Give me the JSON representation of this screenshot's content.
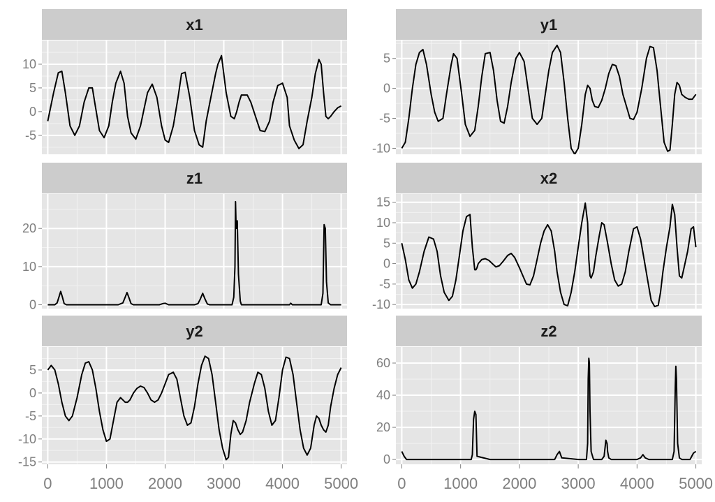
{
  "chart_data": {
    "type": "line",
    "layout": "facet-grid",
    "x_ticks": [
      0,
      1000,
      2000,
      3000,
      4000,
      5000
    ],
    "xlim": [
      -100,
      5100
    ],
    "grid": true,
    "panels": [
      {
        "title": "x1",
        "ylim": [
          -9,
          15
        ],
        "y_ticks": [
          -5,
          0,
          5,
          10
        ],
        "series": [
          {
            "x": [
              0,
              100,
              180,
              240,
              300,
              380,
              460,
              540,
              620,
              700,
              760,
              800,
              880,
              960,
              1040,
              1100,
              1160,
              1240,
              1300,
              1360,
              1420,
              1500,
              1580,
              1640,
              1700,
              1780,
              1860,
              1940,
              2000,
              2060,
              2140,
              2220,
              2280,
              2340,
              2420,
              2500,
              2580,
              2640,
              2700,
              2780,
              2860,
              2900,
              2960,
              3040,
              3120,
              3180,
              3220,
              3260,
              3300,
              3400,
              3460,
              3540,
              3620,
              3700,
              3780,
              3840,
              3920,
              4000,
              4080,
              4120,
              4200,
              4280,
              4350,
              4420,
              4500,
              4560,
              4620,
              4660,
              4700,
              4740,
              4780,
              4820,
              4880,
              4940,
              5000
            ],
            "y": [
              -2,
              4,
              8.2,
              8.5,
              4,
              -3,
              -5,
              -3,
              2,
              5,
              5,
              2,
              -4,
              -5.5,
              -3,
              2,
              6,
              8.5,
              6,
              -1,
              -4.5,
              -5.8,
              -3,
              0.5,
              4,
              5.8,
              3,
              -3,
              -6,
              -6.5,
              -3,
              3,
              8,
              8.3,
              3,
              -4,
              -7,
              -7.5,
              -2,
              3,
              8,
              10,
              11.8,
              4,
              -1,
              -1.5,
              0,
              2,
              3.5,
              3.5,
              2,
              -1,
              -4,
              -4.2,
              -2,
              2,
              5.5,
              6,
              3,
              -3,
              -6,
              -7.8,
              -7,
              -2,
              3,
              8,
              11,
              10,
              4,
              -1,
              -1.5,
              -1,
              0,
              0.8,
              1.2
            ]
          }
        ]
      },
      {
        "title": "y1",
        "ylim": [
          -11,
          8
        ],
        "y_ticks": [
          -10,
          -5,
          0,
          5
        ],
        "series": [
          {
            "x": [
              0,
              60,
              120,
              180,
              240,
              300,
              360,
              420,
              500,
              560,
              620,
              700,
              760,
              840,
              880,
              940,
              1020,
              1080,
              1160,
              1240,
              1300,
              1360,
              1420,
              1500,
              1560,
              1620,
              1680,
              1740,
              1800,
              1860,
              1940,
              2000,
              2080,
              2160,
              2220,
              2300,
              2380,
              2440,
              2500,
              2560,
              2640,
              2700,
              2760,
              2820,
              2880,
              2940,
              3000,
              3060,
              3120,
              3160,
              3200,
              3240,
              3280,
              3340,
              3400,
              3460,
              3520,
              3580,
              3640,
              3700,
              3760,
              3820,
              3880,
              3940,
              4000,
              4080,
              4160,
              4220,
              4280,
              4340,
              4400,
              4460,
              4520,
              4560,
              4600,
              4640,
              4680,
              4720,
              4760,
              4820,
              4880,
              4940,
              5000
            ],
            "y": [
              -10,
              -9,
              -5,
              0,
              4,
              6,
              6.5,
              4,
              -1,
              -4,
              -5.5,
              -5,
              -1,
              4,
              5.8,
              5,
              -1,
              -6,
              -8,
              -7,
              -3,
              2,
              5.8,
              6,
              3,
              -2,
              -5.5,
              -5.8,
              -3,
              1,
              5,
              6,
              4.5,
              -1,
              -5,
              -6,
              -5,
              -1,
              3,
              6,
              7.2,
              6,
              1,
              -5,
              -10,
              -11,
              -10,
              -6,
              -1,
              0.5,
              0,
              -2,
              -3,
              -3.2,
              -2,
              0,
              2.5,
              4,
              3.8,
              2,
              -1,
              -3,
              -5,
              -5.2,
              -4,
              0,
              5,
              7,
              6.8,
              3,
              -3,
              -9,
              -10.5,
              -10.3,
              -6,
              -1,
              1,
              0.5,
              -1,
              -1.5,
              -1.8,
              -1.8,
              -1
            ]
          }
        ]
      },
      {
        "title": "z1",
        "ylim": [
          -1,
          29
        ],
        "y_ticks": [
          0,
          10,
          20
        ],
        "series": [
          {
            "x": [
              0,
              120,
              160,
              190,
              220,
              250,
              280,
              320,
              380,
              1000,
              1200,
              1280,
              1320,
              1350,
              1380,
              1420,
              1460,
              1500,
              1900,
              1960,
              2000,
              2060,
              2500,
              2560,
              2600,
              2640,
              2680,
              2720,
              2760,
              3000,
              3140,
              3170,
              3190,
              3200,
              3210,
              3230,
              3250,
              3280,
              3300,
              4000,
              4120,
              4140,
              4170,
              4600,
              4660,
              4690,
              4710,
              4730,
              4750,
              4780,
              4820,
              5000
            ],
            "y": [
              0,
              0,
              0.5,
              2,
              3.5,
              2,
              0.3,
              0,
              0,
              0,
              0,
              0.5,
              2,
              3.2,
              2,
              0.3,
              0,
              0,
              0,
              0.3,
              0.4,
              0,
              0,
              0.3,
              1.5,
              3,
              1.5,
              0.2,
              0,
              0,
              0,
              2,
              10,
              27,
              20,
              22,
              8,
              1,
              0,
              0,
              0,
              0.4,
              0,
              0,
              0,
              3,
              21,
              20,
              6,
              0.5,
              0,
              0
            ]
          }
        ]
      },
      {
        "title": "x2",
        "ylim": [
          -11,
          17
        ],
        "y_ticks": [
          -10,
          -5,
          0,
          5,
          10,
          15
        ],
        "series": [
          {
            "x": [
              0,
              60,
              120,
              180,
              240,
              300,
              380,
              460,
              540,
              600,
              660,
              720,
              800,
              860,
              920,
              980,
              1040,
              1100,
              1160,
              1200,
              1240,
              1260,
              1280,
              1300,
              1360,
              1420,
              1480,
              1540,
              1600,
              1660,
              1720,
              1800,
              1860,
              1920,
              2000,
              2060,
              2120,
              2180,
              2240,
              2300,
              2360,
              2420,
              2480,
              2540,
              2600,
              2640,
              2700,
              2760,
              2820,
              2880,
              2940,
              3000,
              3060,
              3120,
              3160,
              3180,
              3200,
              3220,
              3260,
              3300,
              3360,
              3400,
              3440,
              3500,
              3560,
              3620,
              3680,
              3740,
              3800,
              3860,
              3940,
              4000,
              4060,
              4120,
              4180,
              4240,
              4300,
              4360,
              4400,
              4440,
              4500,
              4560,
              4600,
              4640,
              4680,
              4720,
              4760,
              4800,
              4860,
              4920,
              4960,
              5000
            ],
            "y": [
              5,
              1,
              -4,
              -6,
              -5,
              -2,
              3,
              6.5,
              6,
              3,
              -3,
              -7,
              -9,
              -8,
              -4,
              2,
              8,
              11.5,
              12,
              4,
              -1.5,
              -1.5,
              -1,
              0,
              1,
              1.2,
              0.8,
              0,
              -0.8,
              -0.5,
              0.5,
              2,
              2.5,
              1.5,
              -1,
              -3,
              -5,
              -5.2,
              -3,
              1,
              5,
              8,
              9.5,
              8,
              3,
              -2,
              -7,
              -10,
              -10.3,
              -7,
              -2,
              4,
              10,
              14.8,
              10,
              1,
              -3,
              -3.5,
              -2,
              2,
              7,
              10,
              9.5,
              5,
              0,
              -4,
              -5.5,
              -5,
              -2,
              3,
              8.5,
              9,
              6,
              1,
              -4,
              -9,
              -10.5,
              -10.2,
              -7,
              -2,
              4,
              9,
              14.5,
              12,
              4,
              -3,
              -3.5,
              -1,
              3,
              8.5,
              9,
              4
            ]
          }
        ]
      },
      {
        "title": "y2",
        "ylim": [
          -15.5,
          10
        ],
        "y_ticks": [
          -15,
          -10,
          -5,
          0,
          5
        ],
        "series": [
          {
            "x": [
              0,
              60,
              120,
              180,
              240,
              300,
              360,
              420,
              500,
              580,
              640,
              700,
              760,
              820,
              880,
              940,
              1000,
              1060,
              1120,
              1180,
              1240,
              1280,
              1320,
              1360,
              1400,
              1460,
              1520,
              1580,
              1640,
              1700,
              1760,
              1820,
              1880,
              1940,
              2000,
              2060,
              2140,
              2200,
              2260,
              2320,
              2380,
              2440,
              2500,
              2560,
              2620,
              2680,
              2740,
              2800,
              2860,
              2920,
              2980,
              3040,
              3080,
              3120,
              3160,
              3200,
              3240,
              3280,
              3320,
              3380,
              3440,
              3520,
              3580,
              3640,
              3700,
              3760,
              3820,
              3880,
              3940,
              4000,
              4060,
              4120,
              4180,
              4240,
              4300,
              4360,
              4420,
              4480,
              4540,
              4580,
              4620,
              4660,
              4700,
              4740,
              4780,
              4820,
              4880,
              4940,
              5000
            ],
            "y": [
              5,
              6,
              5,
              2,
              -2,
              -5,
              -6,
              -5,
              -1,
              4,
              6.5,
              6.8,
              5,
              1,
              -4,
              -8,
              -10.5,
              -10,
              -6,
              -2,
              -1,
              -1.5,
              -2,
              -2,
              -1.5,
              0,
              1,
              1.5,
              1.2,
              0,
              -1.5,
              -2,
              -1.5,
              0,
              2,
              4,
              4.5,
              3,
              -1,
              -5,
              -7,
              -6.5,
              -3,
              2,
              6,
              8,
              7.5,
              4,
              -2,
              -8,
              -12,
              -14.5,
              -14,
              -9,
              -6,
              -6.5,
              -8,
              -9,
              -8.5,
              -6,
              -2,
              2,
              4.5,
              4,
              1,
              -4,
              -7,
              -6,
              -1,
              5,
              7.8,
              7.5,
              4,
              -2,
              -8,
              -12,
              -13.5,
              -12,
              -7,
              -5,
              -5.5,
              -7,
              -8,
              -8.5,
              -7,
              -3,
              1,
              4,
              5.5
            ]
          }
        ]
      },
      {
        "title": "z2",
        "ylim": [
          -3,
          70
        ],
        "y_ticks": [
          0,
          20,
          40,
          60
        ],
        "series": [
          {
            "x": [
              0,
              40,
              80,
              1000,
              1180,
              1200,
              1220,
              1240,
              1260,
              1280,
              1500,
              2500,
              2600,
              2640,
              2680,
              2720,
              3000,
              3140,
              3160,
              3170,
              3180,
              3190,
              3200,
              3220,
              3260,
              3400,
              3440,
              3470,
              3490,
              3500,
              3520,
              3560,
              3600,
              4000,
              4060,
              4100,
              4140,
              4200,
              4500,
              4600,
              4630,
              4650,
              4660,
              4670,
              4690,
              4720,
              4760,
              4900,
              4960,
              5000
            ],
            "y": [
              5,
              2,
              0,
              0,
              0,
              3,
              25,
              30,
              28,
              2,
              0,
              0,
              0,
              3,
              5,
              1,
              0,
              0,
              10,
              50,
              63,
              60,
              30,
              5,
              0,
              0,
              2,
              12,
              10,
              5,
              1,
              0,
              0,
              0,
              1,
              3,
              1,
              0,
              0,
              0,
              5,
              45,
              58,
              50,
              10,
              1,
              0,
              0,
              4,
              5
            ]
          }
        ]
      }
    ]
  }
}
